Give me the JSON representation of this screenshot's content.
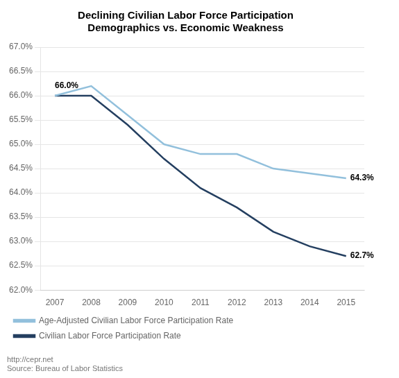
{
  "chart_data": {
    "type": "line",
    "title": "Declining Civilian Labor Force Participation",
    "subtitle": "Demographics vs. Economic Weakness",
    "x": [
      2007,
      2008,
      2009,
      2010,
      2011,
      2012,
      2013,
      2014,
      2015
    ],
    "series": [
      {
        "name": "Age-Adjusted Civilian Labor Force Participation Rate",
        "color": "#92C0DC",
        "values": [
          66.0,
          66.2,
          65.6,
          65.0,
          64.8,
          64.8,
          64.5,
          64.4,
          64.3
        ]
      },
      {
        "name": "Civilian Labor Force Participation Rate",
        "color": "#243F60",
        "values": [
          66.0,
          66.0,
          65.4,
          64.7,
          64.1,
          63.7,
          63.2,
          62.9,
          62.7
        ]
      }
    ],
    "xlim": [
      2006.6,
      2015.5
    ],
    "xticks": [
      2007,
      2008,
      2009,
      2010,
      2011,
      2012,
      2013,
      2014,
      2015
    ],
    "ylim": [
      62.0,
      67.0
    ],
    "yticks": [
      {
        "value": 62.0,
        "label": "62.0%"
      },
      {
        "value": 62.5,
        "label": "62.5%"
      },
      {
        "value": 63.0,
        "label": "63.0%"
      },
      {
        "value": 63.5,
        "label": "63.5%"
      },
      {
        "value": 64.0,
        "label": "64.0%"
      },
      {
        "value": 64.5,
        "label": "64.5%"
      },
      {
        "value": 65.0,
        "label": "65.0%"
      },
      {
        "value": 65.5,
        "label": "65.5%"
      },
      {
        "value": 66.0,
        "label": "66.0%"
      },
      {
        "value": 66.5,
        "label": "66.5%"
      },
      {
        "value": 67.0,
        "label": "67.0%"
      }
    ],
    "grid": true,
    "legend": "bottom",
    "annotations": [
      {
        "text": "66.0%",
        "x": 2007,
        "y": 66.0
      },
      {
        "text": "64.3%",
        "x": 2015,
        "y": 64.3
      },
      {
        "text": "62.7%",
        "x": 2015,
        "y": 62.7
      }
    ],
    "footer": [
      "http://cepr.net",
      "Source: Bureau of Labor Statistics"
    ]
  }
}
